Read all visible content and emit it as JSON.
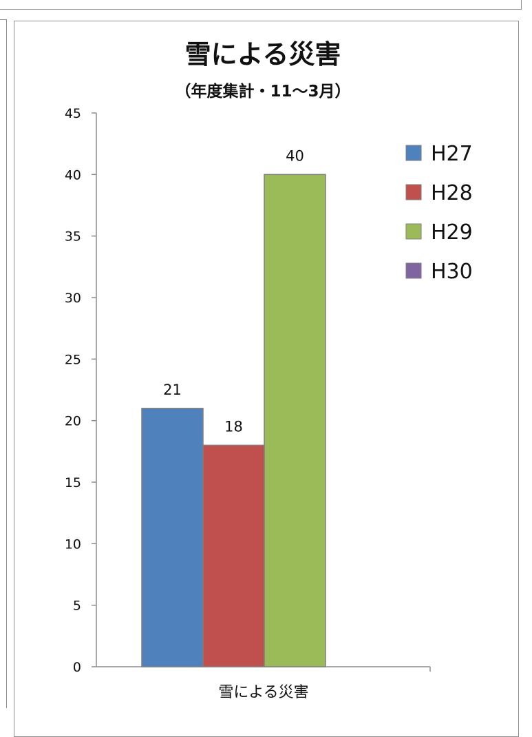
{
  "chart_data": {
    "type": "bar",
    "title": "雪による災害",
    "subtitle": "（年度集計・11～3月）",
    "categories": [
      "雪による災害"
    ],
    "series": [
      {
        "name": "H27",
        "values": [
          21
        ],
        "color": "#4f81bd"
      },
      {
        "name": "H28",
        "values": [
          18
        ],
        "color": "#c0504d"
      },
      {
        "name": "H29",
        "values": [
          40
        ],
        "color": "#9bbb59"
      },
      {
        "name": "H30",
        "values": [
          0
        ],
        "color": "#8064a2"
      }
    ],
    "ylim": [
      0,
      45
    ],
    "ytick_step": 5,
    "xlabel": "",
    "ylabel": "",
    "grid": false,
    "legend": "top-right"
  }
}
